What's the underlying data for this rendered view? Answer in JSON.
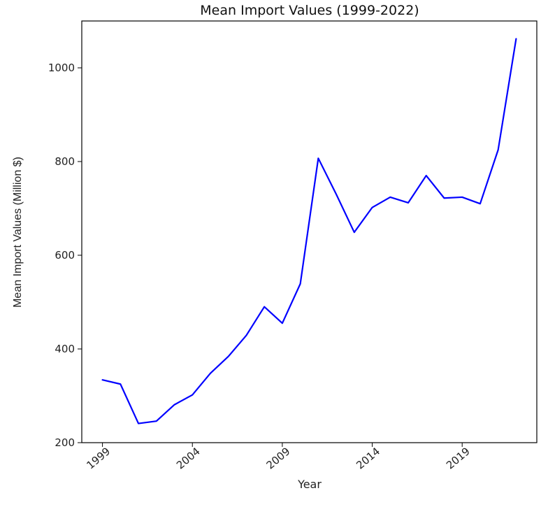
{
  "chart_data": {
    "type": "line",
    "title": "Mean Import Values (1999-2022)",
    "xlabel": "Year",
    "ylabel": "Mean Import Values (Million $)",
    "x": [
      1999,
      2000,
      2001,
      2002,
      2003,
      2004,
      2005,
      2006,
      2007,
      2008,
      2009,
      2010,
      2011,
      2012,
      2013,
      2014,
      2015,
      2016,
      2017,
      2018,
      2019,
      2020,
      2021,
      2022
    ],
    "series": [
      {
        "values": [
          334,
          325,
          241,
          246,
          281,
          302,
          348,
          384,
          429,
          490,
          455,
          539,
          807,
          730,
          649,
          702,
          724,
          712,
          770,
          722,
          724,
          710,
          825,
          1062
        ],
        "color": "#0000ff"
      }
    ],
    "xticks": [
      "1999",
      "2004",
      "2009",
      "2014",
      "2019"
    ],
    "yticks": [
      "200",
      "400",
      "600",
      "800",
      "1000"
    ],
    "xlim": [
      1997.85,
      2023.15
    ],
    "ylim": [
      200,
      1100
    ],
    "grid": false,
    "legend": "none"
  }
}
